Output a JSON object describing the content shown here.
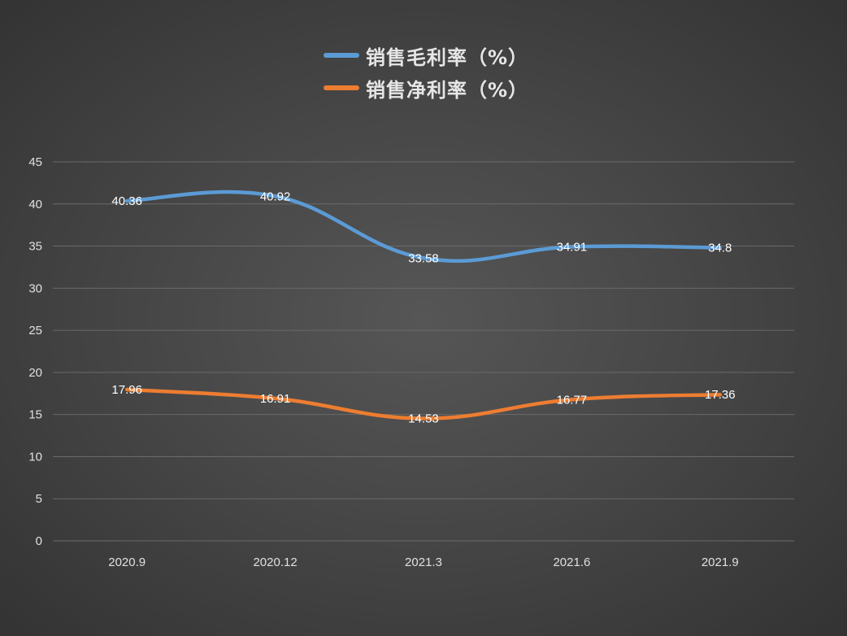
{
  "chart_data": {
    "type": "line",
    "categories": [
      "2020.9",
      "2020.12",
      "2021.3",
      "2021.6",
      "2021.9"
    ],
    "series": [
      {
        "name": "销售毛利率（%）",
        "values": [
          40.36,
          40.92,
          33.58,
          34.91,
          34.8
        ],
        "labels": [
          "40.36",
          "40.92",
          "33.58",
          "34.91",
          "34.8"
        ],
        "color": "#5b9bd5"
      },
      {
        "name": "销售净利率（%）",
        "values": [
          17.96,
          16.91,
          14.53,
          16.77,
          17.36
        ],
        "labels": [
          "17.96",
          "16.91",
          "14.53",
          "16.77",
          "17.36"
        ],
        "color": "#ed7d31"
      }
    ],
    "ylim": [
      0,
      45
    ],
    "yticks": [
      "0",
      "5",
      "10",
      "15",
      "20",
      "25",
      "30",
      "35",
      "40",
      "45"
    ],
    "grid": true,
    "smooth": true,
    "legend_position": "top-center",
    "data_labels": true,
    "title": "",
    "xlabel": "",
    "ylabel": ""
  },
  "colors": {
    "background": "#474747",
    "gridline": "#6a6a6a",
    "axis_text": "#e0e0e0",
    "data_label_text": "#ffffff"
  }
}
